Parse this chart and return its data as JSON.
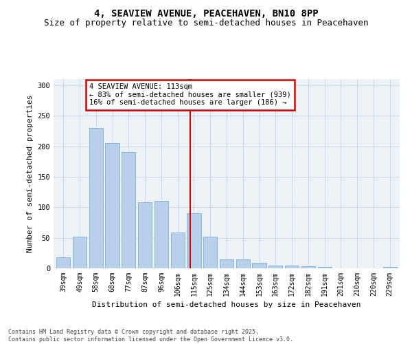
{
  "title": "4, SEAVIEW AVENUE, PEACEHAVEN, BN10 8PP",
  "subtitle": "Size of property relative to semi-detached houses in Peacehaven",
  "xlabel": "Distribution of semi-detached houses by size in Peacehaven",
  "ylabel": "Number of semi-detached properties",
  "categories": [
    "39sqm",
    "49sqm",
    "58sqm",
    "68sqm",
    "77sqm",
    "87sqm",
    "96sqm",
    "106sqm",
    "115sqm",
    "125sqm",
    "134sqm",
    "144sqm",
    "153sqm",
    "163sqm",
    "172sqm",
    "182sqm",
    "191sqm",
    "201sqm",
    "210sqm",
    "220sqm",
    "229sqm"
  ],
  "values": [
    18,
    52,
    230,
    205,
    190,
    108,
    110,
    59,
    90,
    52,
    15,
    15,
    9,
    4,
    5,
    3,
    2,
    0,
    0,
    0,
    2
  ],
  "bar_color": "#b8d0ea",
  "bar_edge_color": "#7aadd4",
  "vline_x_index": 7.78,
  "vline_color": "#cc0000",
  "annotation_text": "4 SEAVIEW AVENUE: 113sqm\n← 83% of semi-detached houses are smaller (939)\n16% of semi-detached houses are larger (186) →",
  "annotation_box_color": "#cc0000",
  "annotation_bg": "#ffffff",
  "footer_text": "Contains HM Land Registry data © Crown copyright and database right 2025.\nContains public sector information licensed under the Open Government Licence v3.0.",
  "ylim": [
    0,
    310
  ],
  "yticks": [
    0,
    50,
    100,
    150,
    200,
    250,
    300
  ],
  "grid_color": "#c8d8e8",
  "bg_color": "#edf2f7",
  "title_fontsize": 10,
  "subtitle_fontsize": 9,
  "axis_label_fontsize": 8,
  "tick_fontsize": 7
}
